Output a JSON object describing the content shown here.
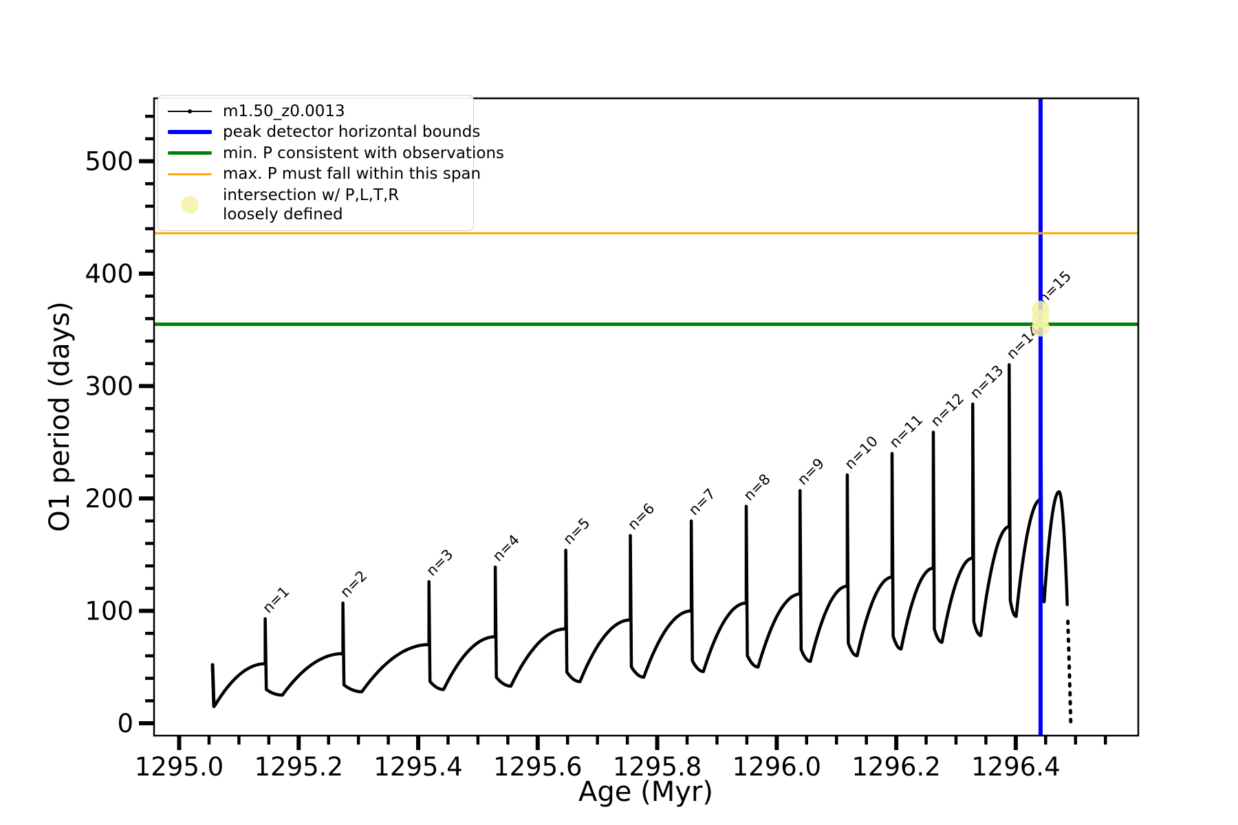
{
  "figure": {
    "xlabel": "Age (Myr)",
    "ylabel": "O1 period (days)"
  },
  "legend": {
    "entries": [
      {
        "label": "m1.50_z0.0013",
        "type": "line-dot",
        "color": "#000000"
      },
      {
        "label": "peak detector horizontal bounds",
        "type": "line",
        "color": "#0000FF"
      },
      {
        "label": "min. P consistent with observations",
        "type": "line",
        "color": "#008000"
      },
      {
        "label": "max. P must fall within this span",
        "type": "line",
        "color": "#FFA500"
      },
      {
        "label": "intersection w/ P,L,T,R",
        "label2": "loosely defined",
        "type": "marker",
        "color": "#F5F2A8"
      }
    ]
  },
  "chart_data": {
    "type": "line",
    "title": "",
    "xlabel": "Age (Myr)",
    "ylabel": "O1 period (days)",
    "xlim": [
      1294.958,
      1296.605
    ],
    "ylim": [
      -11,
      556
    ],
    "grid": false,
    "legend_position": "upper left",
    "x_ticks": [
      {
        "v": 1295.0,
        "label": "1295.0"
      },
      {
        "v": 1295.2,
        "label": "1295.2"
      },
      {
        "v": 1295.4,
        "label": "1295.4"
      },
      {
        "v": 1295.6,
        "label": "1295.6"
      },
      {
        "v": 1295.8,
        "label": "1295.8"
      },
      {
        "v": 1296.0,
        "label": "1296.0"
      },
      {
        "v": 1296.2,
        "label": "1296.2"
      },
      {
        "v": 1296.4,
        "label": "1296.4"
      }
    ],
    "x_minor_step": 0.05,
    "y_ticks": [
      {
        "v": 0,
        "label": "0"
      },
      {
        "v": 100,
        "label": "100"
      },
      {
        "v": 200,
        "label": "200"
      },
      {
        "v": 300,
        "label": "300"
      },
      {
        "v": 400,
        "label": "400"
      },
      {
        "v": 500,
        "label": "500"
      }
    ],
    "y_minor_step": 20,
    "series": [
      {
        "name": "m1.50_z0.0013",
        "color": "#000000",
        "initial_cluster": {
          "x": 1295.057,
          "v_top": 52,
          "v_bottom": 15
        },
        "curve_start": {
          "x": 1295.06,
          "v": 16
        },
        "cycles": [
          {
            "label": "n=1",
            "spike_x": 1295.144,
            "peak": 93,
            "shoulder": 53,
            "dip_after": 25
          },
          {
            "label": "n=2",
            "spike_x": 1295.274,
            "peak": 107,
            "shoulder": 62,
            "dip_after": 28
          },
          {
            "label": "n=3",
            "spike_x": 1295.418,
            "peak": 126,
            "shoulder": 70,
            "dip_after": 30
          },
          {
            "label": "n=4",
            "spike_x": 1295.529,
            "peak": 139,
            "shoulder": 77,
            "dip_after": 33
          },
          {
            "label": "n=5",
            "spike_x": 1295.647,
            "peak": 154,
            "shoulder": 84,
            "dip_after": 37
          },
          {
            "label": "n=6",
            "spike_x": 1295.755,
            "peak": 167,
            "shoulder": 92,
            "dip_after": 41
          },
          {
            "label": "n=7",
            "spike_x": 1295.857,
            "peak": 180,
            "shoulder": 100,
            "dip_after": 46
          },
          {
            "label": "n=8",
            "spike_x": 1295.949,
            "peak": 193,
            "shoulder": 107,
            "dip_after": 50
          },
          {
            "label": "n=9",
            "spike_x": 1296.039,
            "peak": 207,
            "shoulder": 115,
            "dip_after": 55
          },
          {
            "label": "n=10",
            "spike_x": 1296.118,
            "peak": 221,
            "shoulder": 122,
            "dip_after": 60
          },
          {
            "label": "n=11",
            "spike_x": 1296.193,
            "peak": 240,
            "shoulder": 130,
            "dip_after": 66
          },
          {
            "label": "n=12",
            "spike_x": 1296.262,
            "peak": 259,
            "shoulder": 138,
            "dip_after": 72
          },
          {
            "label": "n=13",
            "spike_x": 1296.328,
            "peak": 284,
            "shoulder": 147,
            "dip_after": 78
          },
          {
            "label": "n=14",
            "spike_x": 1296.389,
            "peak": 319,
            "shoulder": 175,
            "dip_after": 95
          },
          {
            "label": "n=15",
            "spike_x": 1296.4415,
            "peak": 368,
            "shoulder": 199,
            "dip_after": 108
          }
        ],
        "tail": {
          "dip_x": 1296.4475,
          "hump_x": 1296.4725,
          "hump": 206,
          "end_x": 1296.492,
          "end": 1
        }
      }
    ],
    "annotations": {
      "vline": {
        "x": 1296.4415,
        "color": "#0000FF",
        "label": "peak detector horizontal bounds"
      },
      "hlines": [
        {
          "y": 355,
          "color": "#008000",
          "label": "min. P consistent with observations"
        },
        {
          "y": 436,
          "color": "#FFA500",
          "label": "max. P must fall within this span"
        }
      ],
      "intersection": {
        "x": 1296.4415,
        "y_values": [
          352,
          360,
          368
        ],
        "color": "#F5F2A8",
        "label": "intersection w/ P,L,T,R loosely defined"
      }
    }
  }
}
